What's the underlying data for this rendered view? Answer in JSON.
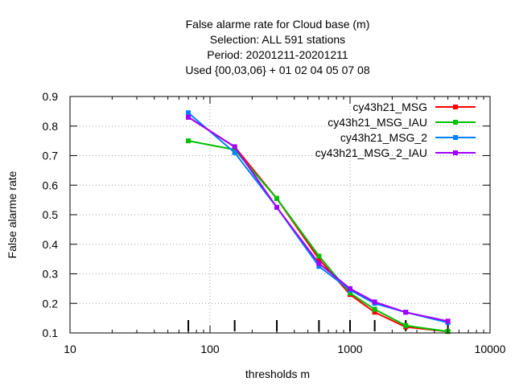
{
  "chart_data": {
    "type": "line",
    "title_lines": [
      "False alarme rate  for Cloud base (m)",
      "Selection: ALL    591 stations",
      "Period: 20201211-20201211",
      "Used {00,03,06} + 01 02 04 05 07 08"
    ],
    "xlabel": "thresholds m",
    "ylabel": "False alarme rate",
    "x_scale": "log",
    "xlim": [
      10,
      10000
    ],
    "ylim": [
      0.1,
      0.9
    ],
    "x_ticks": [
      10,
      100,
      1000,
      10000
    ],
    "x_tick_labels": [
      "10",
      "100",
      "1000",
      "10000"
    ],
    "y_ticks": [
      0.1,
      0.2,
      0.3,
      0.4,
      0.5,
      0.6,
      0.7,
      0.8,
      0.9
    ],
    "y_tick_labels": [
      "0.1",
      "0.2",
      "0.3",
      "0.4",
      "0.5",
      "0.6",
      "0.7",
      "0.8",
      "0.9"
    ],
    "grid": true,
    "legend_position": "top-right",
    "threshold_marks": [
      70,
      150,
      300,
      600,
      1000,
      1500,
      2500,
      5000
    ],
    "x": [
      70,
      150,
      300,
      600,
      1000,
      1500,
      2500,
      5000
    ],
    "series": [
      {
        "name": "cy43h21_MSG",
        "color": "#ff0000",
        "values": [
          0.83,
          0.73,
          0.555,
          0.35,
          0.23,
          0.17,
          0.12,
          0.105
        ]
      },
      {
        "name": "cy43h21_MSG_IAU",
        "color": "#00c000",
        "values": [
          0.75,
          0.72,
          0.555,
          0.36,
          0.235,
          0.18,
          0.125,
          0.105
        ]
      },
      {
        "name": "cy43h21_MSG_2",
        "color": "#0080ff",
        "values": [
          0.845,
          0.71,
          0.525,
          0.325,
          0.245,
          0.2,
          0.17,
          0.135
        ]
      },
      {
        "name": "cy43h21_MSG_2_IAU",
        "color": "#a000ff",
        "values": [
          0.83,
          0.73,
          0.525,
          0.335,
          0.25,
          0.205,
          0.17,
          0.14
        ]
      }
    ]
  }
}
